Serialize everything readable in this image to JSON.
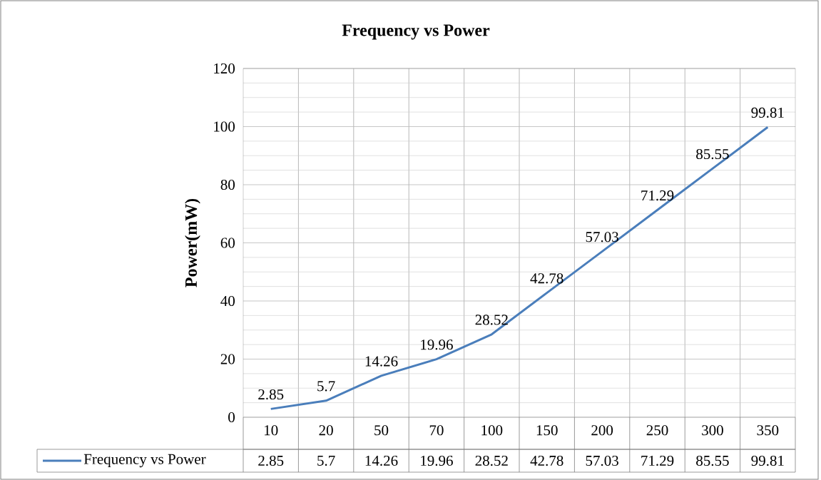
{
  "chart_data": {
    "type": "line",
    "title": "Frequency vs Power",
    "ylabel": "Power(mW)",
    "categories": [
      "10",
      "20",
      "50",
      "70",
      "100",
      "150",
      "200",
      "250",
      "300",
      "350"
    ],
    "series": [
      {
        "name": "Frequency vs Power",
        "color": "#4a7ebb",
        "values": [
          2.85,
          5.7,
          14.26,
          19.96,
          28.52,
          42.78,
          57.03,
          71.29,
          85.55,
          99.81
        ],
        "value_labels": [
          "2.85",
          "5.7",
          "14.26",
          "19.96",
          "28.52",
          "42.78",
          "57.03",
          "71.29",
          "85.55",
          "99.81"
        ]
      }
    ],
    "ylim": [
      0,
      120
    ],
    "yticks": [
      0,
      20,
      40,
      60,
      80,
      100,
      120
    ],
    "grid": true,
    "legend": "bottom",
    "data_labels": true,
    "marker": "none",
    "line_style": "solid"
  }
}
